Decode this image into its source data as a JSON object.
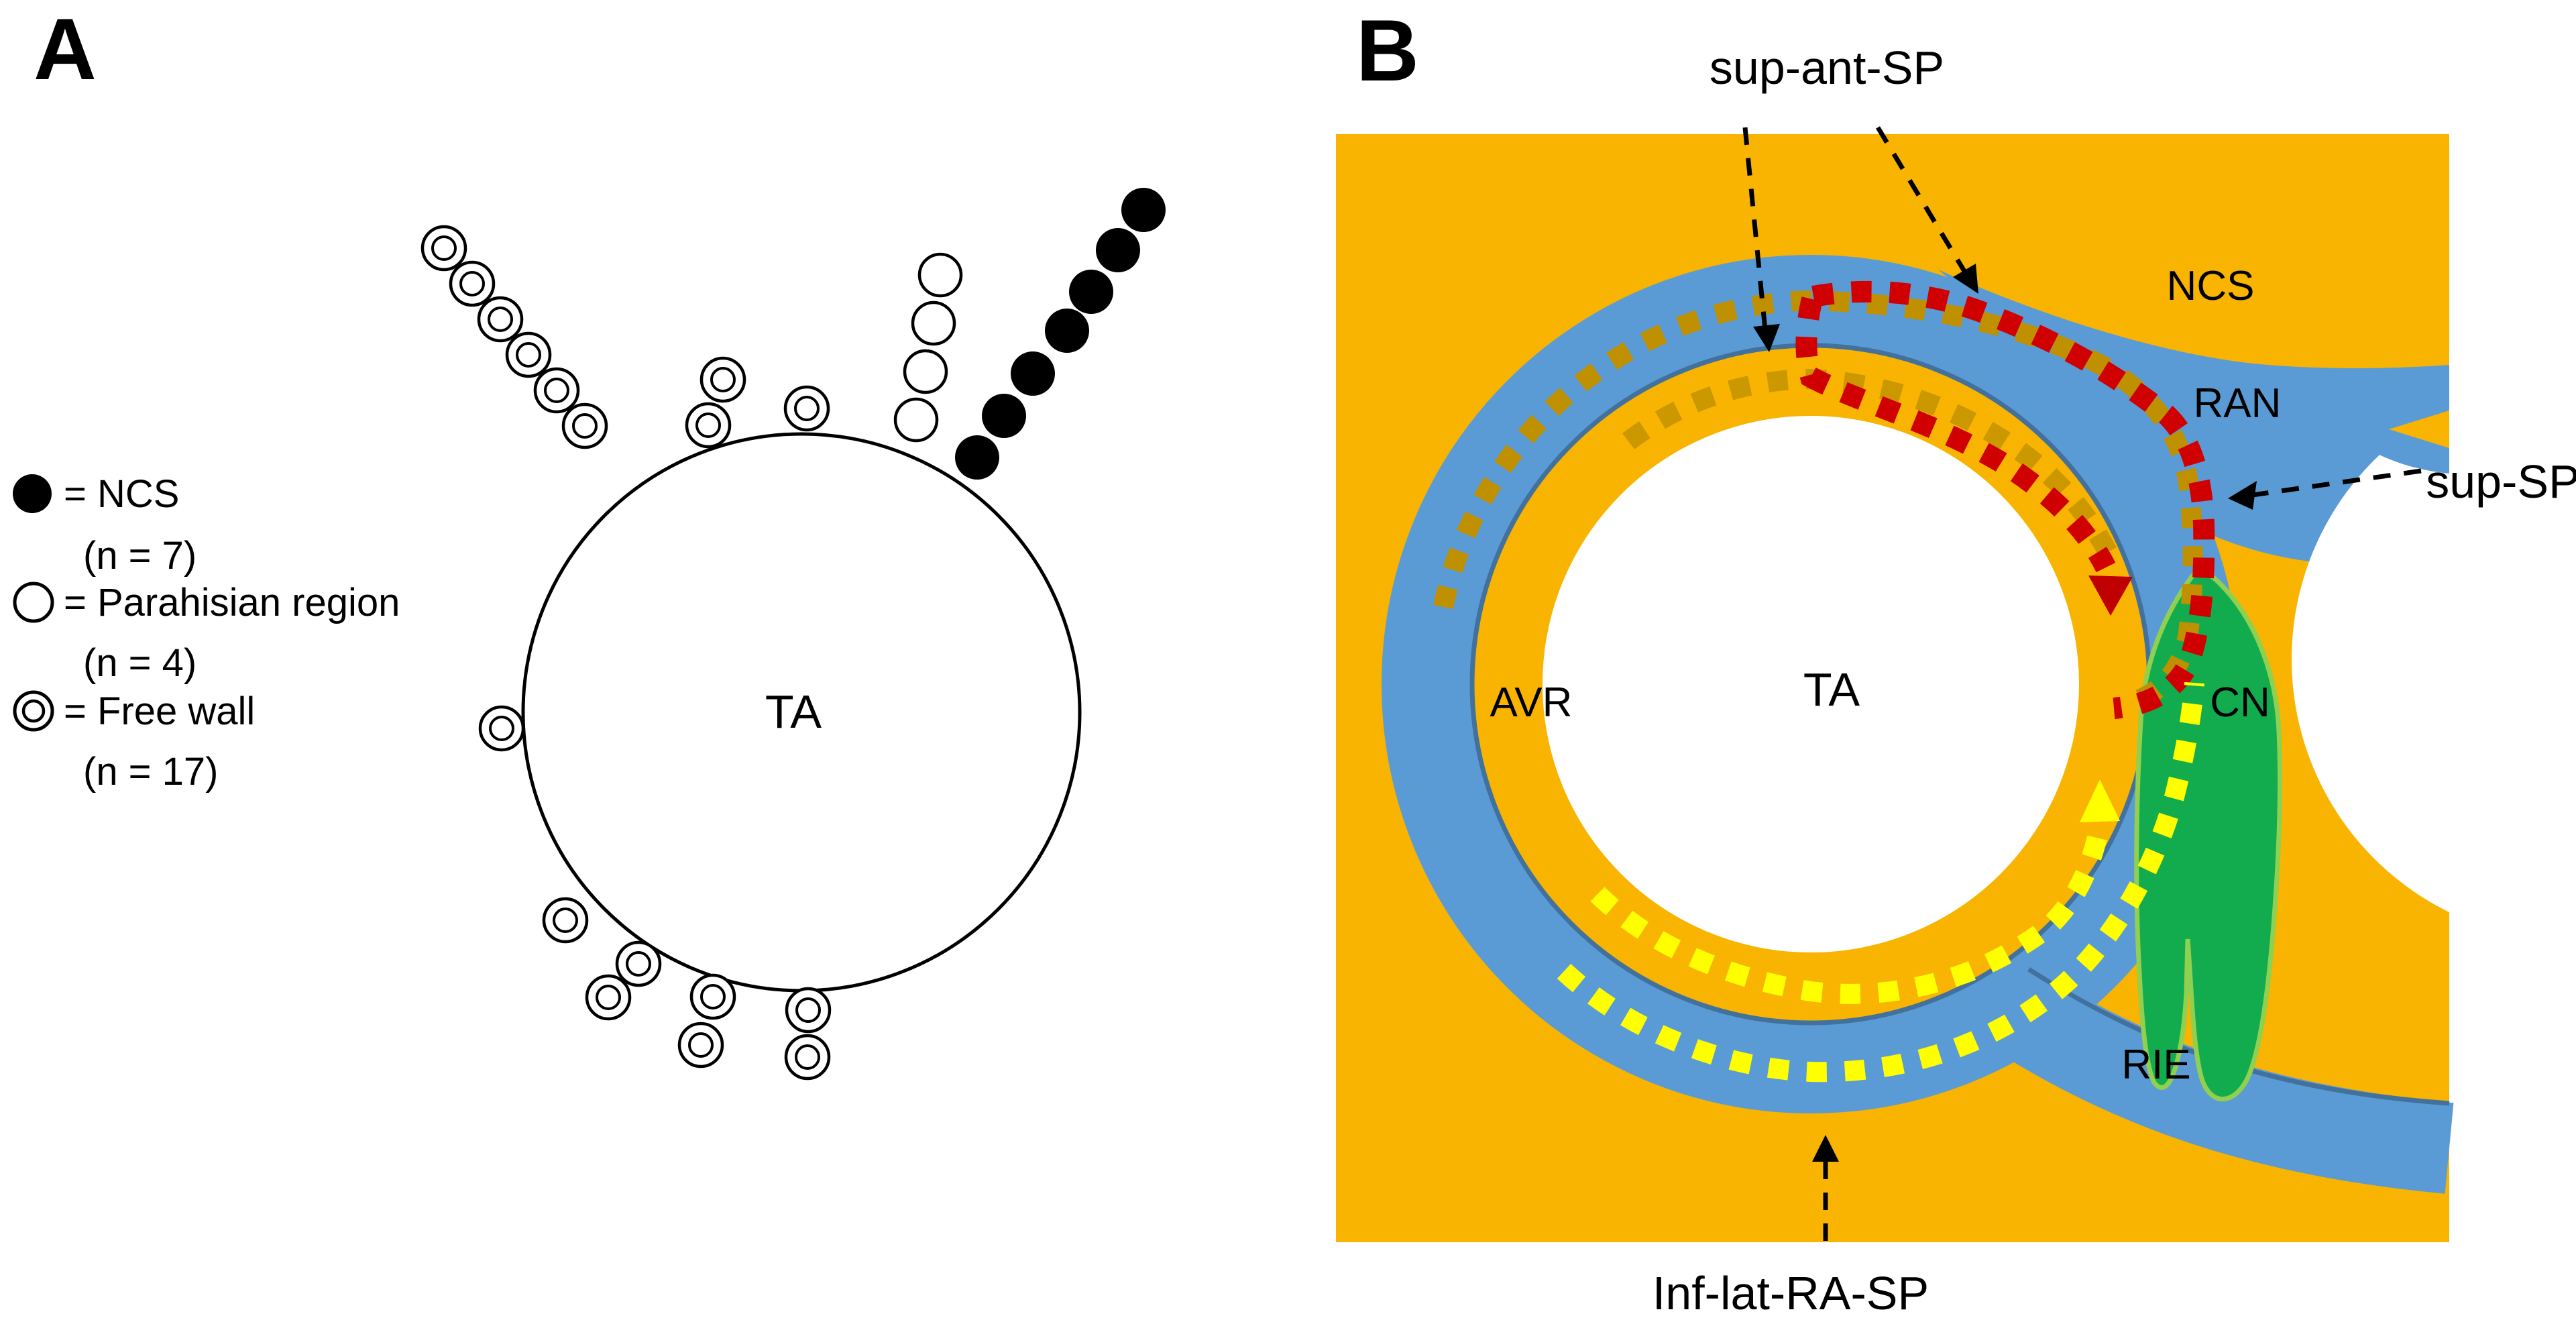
{
  "panel_a": {
    "label": "A",
    "circle_label": "TA",
    "legend": {
      "rows": [
        {
          "symbol": "filled-circle",
          "eq": "= NCS",
          "count": "(n = 7)"
        },
        {
          "symbol": "open-circle",
          "eq": "= Parahisian region",
          "count": "(n = 4)"
        },
        {
          "symbol": "double-circle",
          "eq": "= Free wall",
          "count": "(n = 17)"
        }
      ]
    },
    "markers": {
      "ncs": [
        [
          1705,
          313
        ],
        [
          1667,
          373
        ],
        [
          1627,
          435
        ],
        [
          1591,
          493
        ],
        [
          1540,
          557
        ],
        [
          1497,
          620
        ],
        [
          1457,
          682
        ]
      ],
      "parahisian": [
        [
          1402,
          410
        ],
        [
          1392,
          482
        ],
        [
          1380,
          554
        ],
        [
          1366,
          626
        ]
      ],
      "free_wall": [
        [
          662,
          370
        ],
        [
          704,
          423
        ],
        [
          746,
          476
        ],
        [
          788,
          529
        ],
        [
          830,
          582
        ],
        [
          872,
          635
        ],
        [
          1078,
          566
        ],
        [
          1056,
          634
        ],
        [
          1203,
          609
        ],
        [
          748,
          1086
        ],
        [
          843,
          1372
        ],
        [
          952,
          1437
        ],
        [
          907,
          1487
        ],
        [
          1063,
          1486
        ],
        [
          1045,
          1558
        ],
        [
          1205,
          1506
        ],
        [
          1204,
          1576
        ]
      ]
    }
  },
  "panel_b": {
    "label": "B",
    "labels": {
      "sup_ant_sp": "sup-ant-SP",
      "ncs": "NCS",
      "ran": "RAN",
      "sup_sp": "sup-SP",
      "avr": "AVR",
      "ta": "TA",
      "cn": "CN",
      "rie": "RIE",
      "inf_lat_ra_sp": "Inf-lat-RA-SP"
    },
    "colors": {
      "background_orange": "#F8B400",
      "ring_blue": "#5B9BD5",
      "ring_blue_dark_edge": "#41719C",
      "node_green": "#12AC4E",
      "node_green_edge": "#90D050",
      "path_red": "#D00000",
      "path_tan": "#BF9000",
      "path_yellow": "#FFFF00",
      "annotation_black": "#000000"
    }
  }
}
